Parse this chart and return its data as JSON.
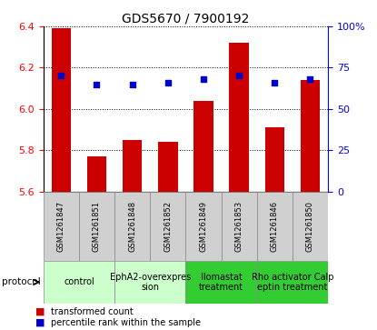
{
  "title": "GDS5670 / 7900192",
  "samples": [
    "GSM1261847",
    "GSM1261851",
    "GSM1261848",
    "GSM1261852",
    "GSM1261849",
    "GSM1261853",
    "GSM1261846",
    "GSM1261850"
  ],
  "transformed_counts": [
    6.39,
    5.77,
    5.85,
    5.84,
    6.04,
    6.32,
    5.91,
    6.14
  ],
  "percentile_ranks": [
    70,
    65,
    65,
    66,
    68,
    70,
    66,
    68
  ],
  "ylim_left": [
    5.6,
    6.4
  ],
  "ylim_right": [
    0,
    100
  ],
  "yticks_left": [
    5.6,
    5.8,
    6.0,
    6.2,
    6.4
  ],
  "yticks_right": [
    0,
    25,
    50,
    75,
    100
  ],
  "bar_color": "#cc0000",
  "dot_color": "#0000cc",
  "protocol_groups": [
    {
      "label": "control",
      "indices": [
        0,
        1
      ],
      "color": "#ccffcc"
    },
    {
      "label": "EphA2-overexpres\nsion",
      "indices": [
        2,
        3
      ],
      "color": "#ccffcc"
    },
    {
      "label": "Ilomastat\ntreatment",
      "indices": [
        4,
        5
      ],
      "color": "#33cc33"
    },
    {
      "label": "Rho activator Calp\neptin treatment",
      "indices": [
        6,
        7
      ],
      "color": "#33cc33"
    }
  ],
  "legend_items": [
    {
      "color": "#cc0000",
      "label": "transformed count"
    },
    {
      "color": "#0000cc",
      "label": "percentile rank within the sample"
    }
  ],
  "sample_bg": "#d0d0d0",
  "title_fontsize": 10,
  "tick_fontsize": 8,
  "sample_fontsize": 6,
  "proto_fontsize": 7
}
